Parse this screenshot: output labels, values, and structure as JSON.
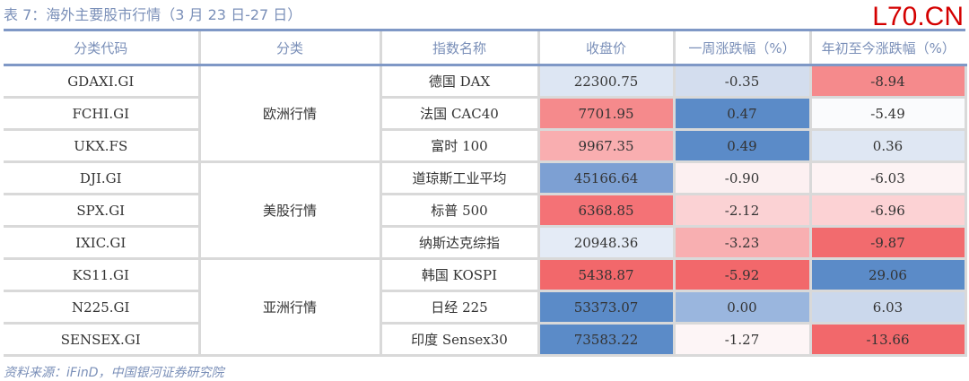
{
  "title": "表 7：海外主要股市行情（3 月 23 日-27 日）",
  "watermark": "L70.CN",
  "headers": [
    "分类代码",
    "分类",
    "指数名称",
    "收盘价",
    "一周涨跌幅（%）",
    "年初至今涨跌幅（%）"
  ],
  "groups": [
    "欧洲行情",
    "美股行情",
    "亚洲行情"
  ],
  "rows": [
    {
      "code": "GDAXI.GI",
      "name": "德国 DAX",
      "close": "22300.75",
      "week": "-0.35",
      "ytd": "-8.94",
      "c1": "#dde6f3",
      "c2": "#d3ddee",
      "c3": "#f58a8c"
    },
    {
      "code": "FCHI.GI",
      "name": "法国 CAC40",
      "close": "7701.95",
      "week": "0.47",
      "ytd": "-5.49",
      "c1": "#f58a8c",
      "c2": "#5b8bc8",
      "c3": "#fafbfd"
    },
    {
      "code": "UKX.FS",
      "name": "富时 100",
      "close": "9967.35",
      "week": "0.49",
      "ytd": "0.36",
      "c1": "#f9aeb0",
      "c2": "#5b8bc8",
      "c3": "#dfe7f3"
    },
    {
      "code": "DJI.GI",
      "name": "道琼斯工业平均",
      "close": "45166.64",
      "week": "-0.90",
      "ytd": "-6.03",
      "c1": "#7da0d3",
      "c2": "#fcf0f1",
      "c3": "#fdf3f4"
    },
    {
      "code": "SPX.GI",
      "name": "标普 500",
      "close": "6368.85",
      "week": "-2.12",
      "ytd": "-6.96",
      "c1": "#f47276",
      "c2": "#fbd2d4",
      "c3": "#fcd2d4"
    },
    {
      "code": "IXIC.GI",
      "name": "纳斯达克综指",
      "close": "20948.36",
      "week": "-3.23",
      "ytd": "-9.87",
      "c1": "#e4ebf6",
      "c2": "#f8afb1",
      "c3": "#f26b6e"
    },
    {
      "code": "KS11.GI",
      "name": "韩国 KOSPI",
      "close": "5438.87",
      "week": "-5.92",
      "ytd": "29.06",
      "c1": "#f2686b",
      "c2": "#f2686b",
      "c3": "#5b8bc8"
    },
    {
      "code": "N225.GI",
      "name": "日经 225",
      "close": "53373.07",
      "week": "0.00",
      "ytd": "6.03",
      "c1": "#5b8bc8",
      "c2": "#9ab6de",
      "c3": "#cbd8ec"
    },
    {
      "code": "SENSEX.GI",
      "name": "印度 Sensex30",
      "close": "73583.22",
      "week": "-1.27",
      "ytd": "-13.66",
      "c1": "#5b8bc8",
      "c2": "#fdf5f6",
      "c3": "#f2686b"
    }
  ],
  "source": "资料来源：iFinD，中国银河证券研究院"
}
